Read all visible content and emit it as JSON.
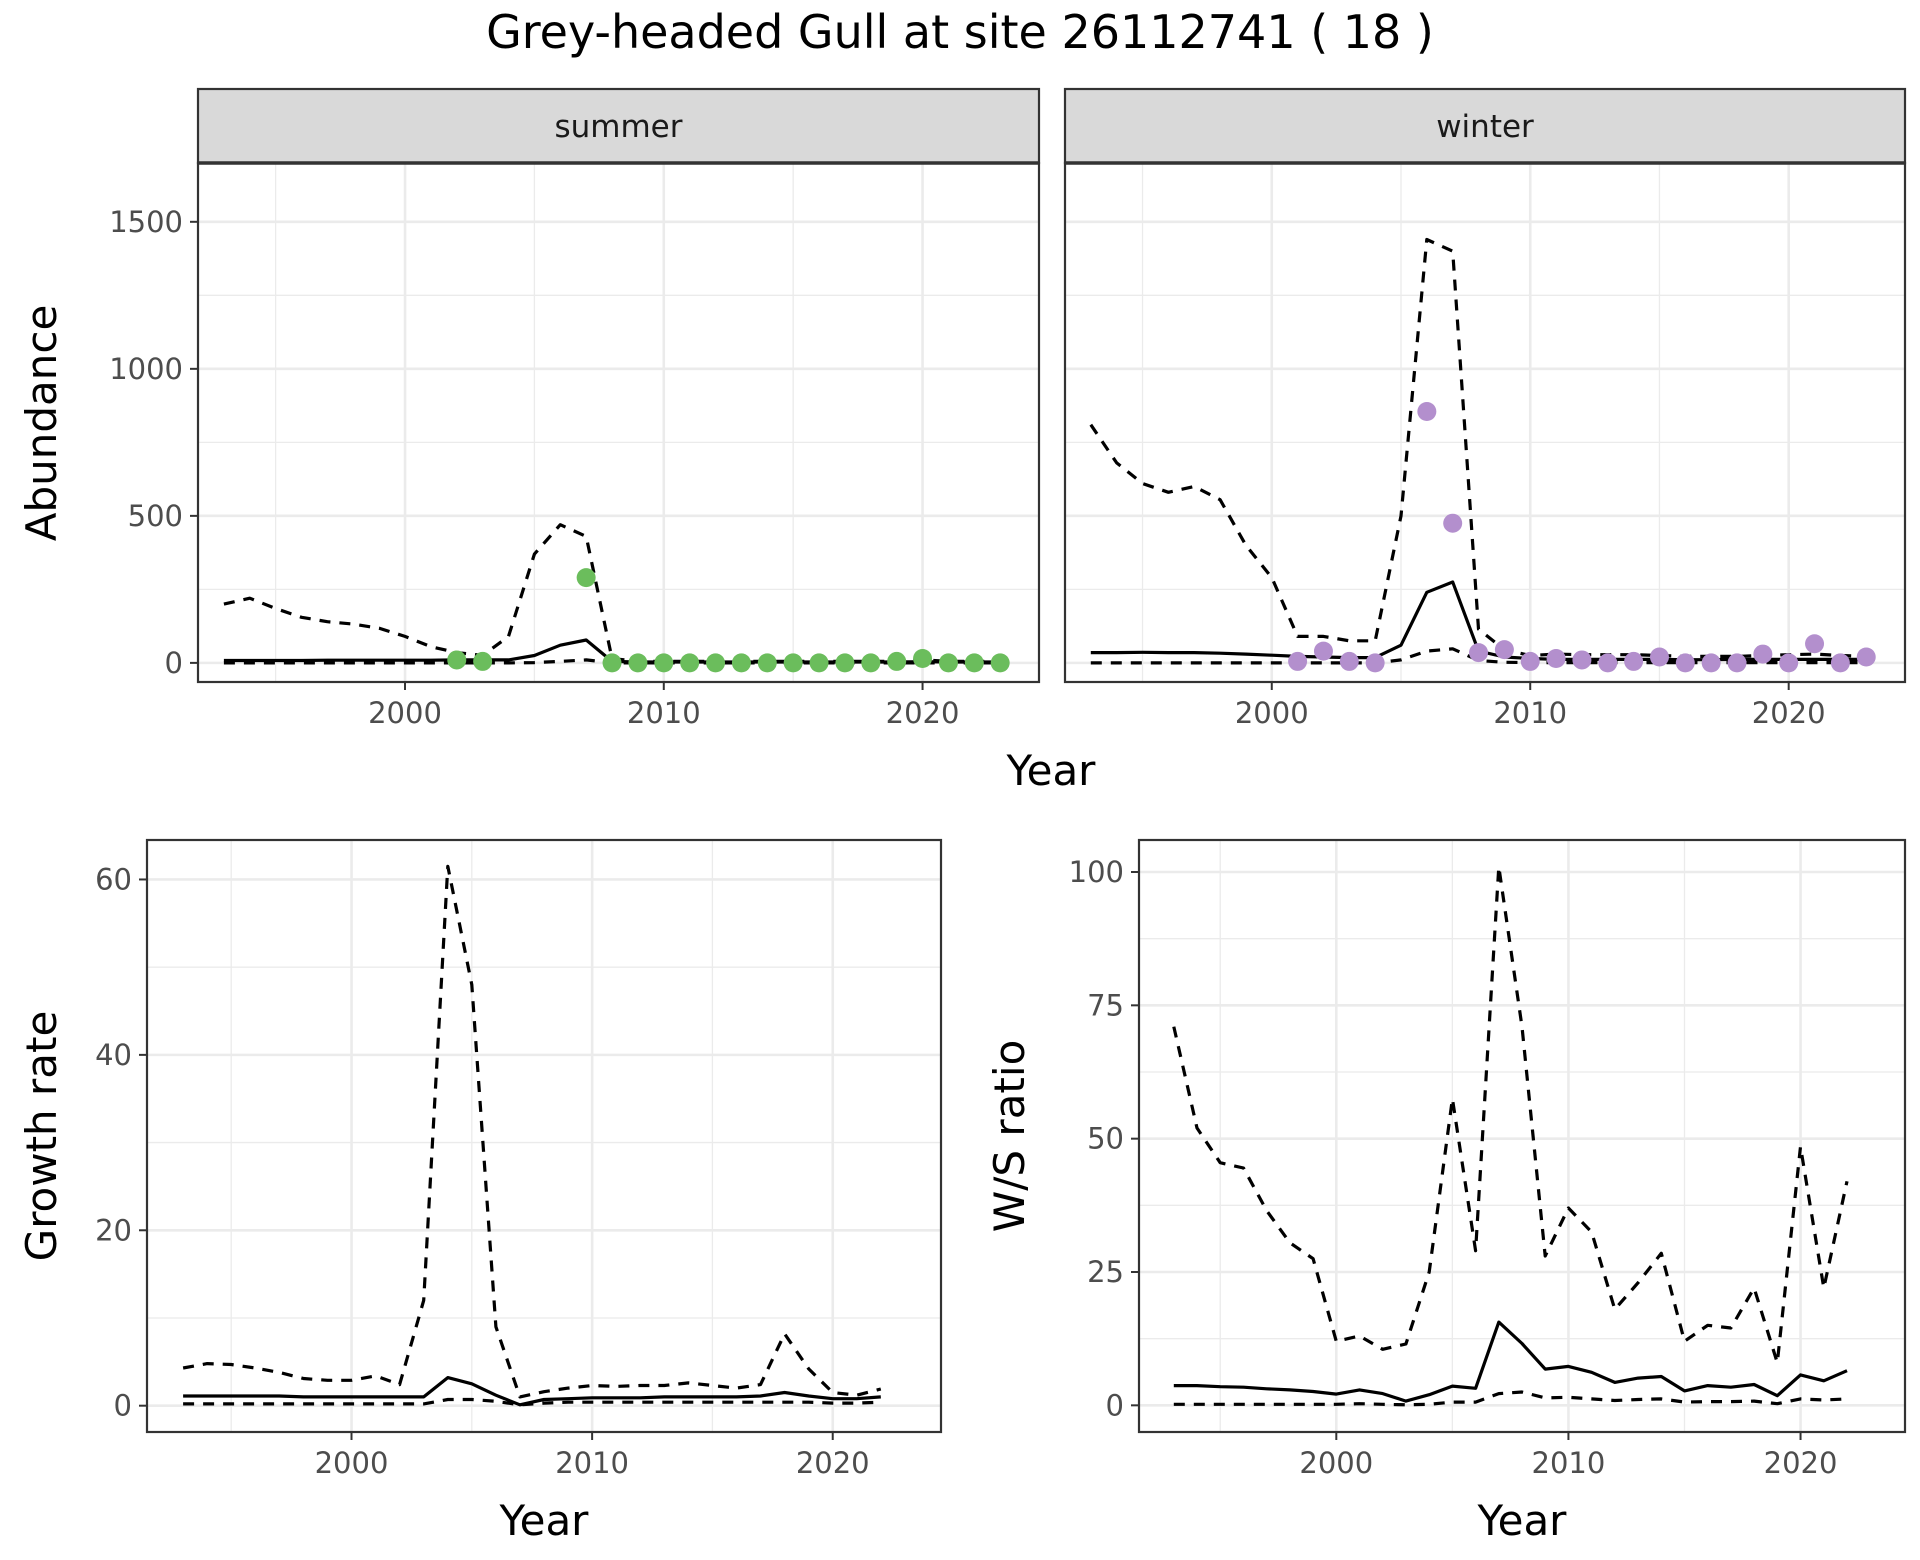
{
  "title": "Grey-headed Gull at site 26112741 ( 18 )",
  "chart_data": [
    {
      "id": "abundance",
      "type": "line",
      "facets": [
        "summer",
        "winter"
      ],
      "xlabel": "Year",
      "ylabel": "Abundance",
      "xlim": [
        1992,
        2024.5
      ],
      "ylim": [
        -65,
        1700
      ],
      "xticks": [
        2000,
        2010,
        2020
      ],
      "yticks": [
        0,
        500,
        1000,
        1500
      ],
      "point_colors": {
        "summer": "#6bbd5c",
        "winter": "#b38fcd"
      },
      "panels": {
        "summer": {
          "line_x": [
            1993,
            1994,
            1995,
            1996,
            1997,
            1998,
            1999,
            2000,
            2001,
            2002,
            2003,
            2004,
            2005,
            2006,
            2007,
            2008,
            2009,
            2010,
            2011,
            2012,
            2013,
            2014,
            2015,
            2016,
            2017,
            2018,
            2019,
            2020,
            2021,
            2022,
            2023
          ],
          "mean": [
            8,
            8,
            8,
            8,
            9,
            9,
            9,
            9,
            9,
            10,
            10,
            10,
            25,
            60,
            78,
            5,
            3,
            3,
            3,
            3,
            3,
            3,
            3,
            3,
            3,
            3,
            3,
            4,
            3,
            3,
            3
          ],
          "upper": [
            200,
            220,
            185,
            155,
            140,
            132,
            118,
            90,
            55,
            35,
            25,
            90,
            370,
            470,
            430,
            15,
            5,
            5,
            5,
            5,
            5,
            5,
            5,
            5,
            5,
            5,
            5,
            10,
            5,
            5,
            5
          ],
          "lower": [
            0,
            0,
            0,
            0,
            0,
            0,
            0,
            0,
            0,
            0,
            0,
            0,
            1,
            5,
            10,
            0,
            0,
            0,
            0,
            0,
            0,
            0,
            0,
            0,
            0,
            0,
            0,
            0,
            0,
            0,
            0
          ],
          "points_x": [
            2002,
            2003,
            2007,
            2008,
            2009,
            2010,
            2011,
            2012,
            2013,
            2014,
            2015,
            2016,
            2017,
            2018,
            2019,
            2020,
            2021,
            2022,
            2023
          ],
          "points_y": [
            10,
            5,
            290,
            0,
            0,
            0,
            0,
            0,
            0,
            0,
            0,
            0,
            0,
            0,
            5,
            15,
            0,
            0,
            0
          ]
        },
        "winter": {
          "line_x": [
            1993,
            1994,
            1995,
            1996,
            1997,
            1998,
            1999,
            2000,
            2001,
            2002,
            2003,
            2004,
            2005,
            2006,
            2007,
            2008,
            2009,
            2010,
            2011,
            2012,
            2013,
            2014,
            2015,
            2016,
            2017,
            2018,
            2019,
            2020,
            2021,
            2022,
            2023
          ],
          "mean": [
            35,
            35,
            36,
            35,
            35,
            33,
            30,
            26,
            22,
            20,
            18,
            18,
            60,
            240,
            275,
            40,
            20,
            15,
            12,
            12,
            12,
            12,
            12,
            11,
            11,
            12,
            12,
            12,
            12,
            12,
            12
          ],
          "upper": [
            810,
            680,
            610,
            580,
            600,
            555,
            400,
            290,
            90,
            90,
            75,
            75,
            500,
            1440,
            1400,
            115,
            45,
            25,
            30,
            28,
            28,
            28,
            25,
            22,
            22,
            22,
            25,
            28,
            30,
            25,
            22
          ],
          "lower": [
            0,
            0,
            0,
            0,
            0,
            0,
            0,
            0,
            0,
            0,
            0,
            0,
            10,
            40,
            48,
            8,
            2,
            1,
            1,
            1,
            1,
            1,
            1,
            1,
            1,
            1,
            1,
            1,
            1,
            1,
            1
          ],
          "points_x": [
            2001,
            2002,
            2003,
            2004,
            2006,
            2007,
            2008,
            2009,
            2010,
            2011,
            2012,
            2013,
            2014,
            2015,
            2016,
            2017,
            2018,
            2019,
            2020,
            2021,
            2022,
            2023
          ],
          "points_y": [
            5,
            40,
            5,
            0,
            855,
            475,
            35,
            45,
            5,
            15,
            10,
            0,
            5,
            20,
            0,
            0,
            0,
            30,
            0,
            65,
            0,
            20
          ]
        }
      }
    },
    {
      "id": "growth",
      "type": "line",
      "xlabel": "Year",
      "ylabel": "Growth rate",
      "xlim": [
        1991.5,
        2024.5
      ],
      "ylim": [
        -3,
        64.5
      ],
      "xticks": [
        2000,
        2010,
        2020
      ],
      "yticks": [
        0,
        20,
        40,
        60
      ],
      "x": [
        1993,
        1994,
        1995,
        1996,
        1997,
        1998,
        1999,
        2000,
        2001,
        2002,
        2003,
        2004,
        2005,
        2006,
        2007,
        2008,
        2009,
        2010,
        2011,
        2012,
        2013,
        2014,
        2015,
        2016,
        2017,
        2018,
        2019,
        2020,
        2021,
        2022
      ],
      "mean": [
        1.1,
        1.1,
        1.1,
        1.1,
        1.1,
        1.0,
        1.0,
        1.0,
        1.0,
        1.0,
        1.0,
        3.2,
        2.5,
        1.2,
        0.1,
        0.7,
        0.8,
        0.9,
        0.9,
        0.9,
        1.0,
        1.0,
        1.0,
        1.0,
        1.1,
        1.5,
        1.1,
        0.8,
        0.8,
        1.0
      ],
      "upper": [
        4.3,
        4.8,
        4.7,
        4.3,
        3.8,
        3.1,
        2.9,
        2.9,
        3.4,
        2.4,
        12.0,
        61.5,
        48.0,
        9.0,
        1.0,
        1.6,
        2.0,
        2.3,
        2.2,
        2.3,
        2.3,
        2.6,
        2.3,
        2.0,
        2.4,
        8.2,
        4.2,
        1.5,
        1.2,
        1.9
      ],
      "lower": [
        0.2,
        0.2,
        0.2,
        0.2,
        0.2,
        0.2,
        0.2,
        0.2,
        0.2,
        0.2,
        0.2,
        0.7,
        0.7,
        0.5,
        0.1,
        0.3,
        0.4,
        0.4,
        0.4,
        0.4,
        0.4,
        0.4,
        0.4,
        0.4,
        0.4,
        0.4,
        0.4,
        0.3,
        0.3,
        0.4
      ]
    },
    {
      "id": "ws_ratio",
      "type": "line",
      "xlabel": "Year",
      "ylabel": "W/S ratio",
      "xlim": [
        1991.5,
        2024.5
      ],
      "ylim": [
        -5,
        106
      ],
      "xticks": [
        2000,
        2010,
        2020
      ],
      "yticks": [
        0,
        25,
        50,
        75,
        100
      ],
      "x": [
        1993,
        1994,
        1995,
        1996,
        1997,
        1998,
        1999,
        2000,
        2001,
        2002,
        2003,
        2004,
        2005,
        2006,
        2007,
        2008,
        2009,
        2010,
        2011,
        2012,
        2013,
        2014,
        2015,
        2016,
        2017,
        2018,
        2019,
        2020,
        2021,
        2022
      ],
      "mean": [
        3.7,
        3.7,
        3.5,
        3.4,
        3.1,
        2.9,
        2.6,
        2.1,
        2.9,
        2.2,
        0.8,
        2.0,
        3.6,
        3.2,
        15.6,
        11.6,
        6.8,
        7.3,
        6.2,
        4.3,
        5.1,
        5.4,
        2.7,
        3.7,
        3.4,
        3.9,
        1.8,
        5.7,
        4.6,
        6.5
      ],
      "upper": [
        71,
        52,
        45.5,
        44.5,
        36.5,
        30.5,
        27.5,
        12,
        13,
        10.5,
        11.5,
        25,
        57.5,
        29,
        101,
        71,
        28,
        37,
        32.5,
        18,
        23,
        28.5,
        12,
        15,
        14.5,
        22,
        8,
        48.5,
        22,
        42
      ],
      "lower": [
        0.2,
        0.2,
        0.2,
        0.2,
        0.2,
        0.2,
        0.2,
        0.2,
        0.3,
        0.2,
        0.1,
        0.2,
        0.6,
        0.6,
        2.2,
        2.5,
        1.4,
        1.5,
        1.2,
        0.9,
        1.1,
        1.2,
        0.6,
        0.7,
        0.7,
        0.8,
        0.3,
        1.2,
        1.0,
        1.2
      ]
    }
  ]
}
